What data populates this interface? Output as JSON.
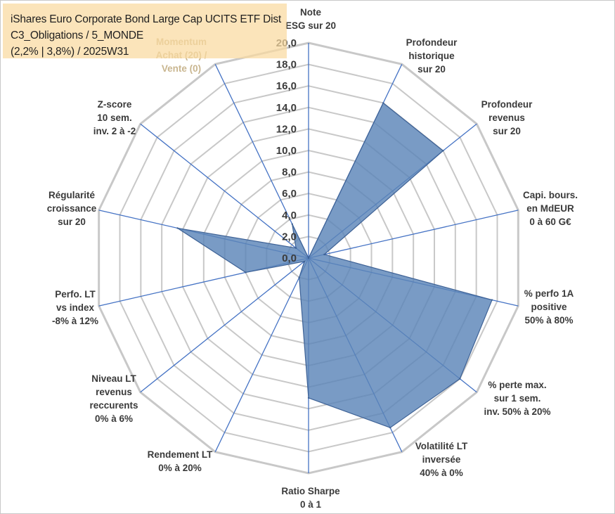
{
  "title": {
    "line1": "iShares Euro Corporate Bond Large Cap UCITS ETF Dist",
    "line2": "C3_Obligations / 5_MONDE",
    "line3": "(2,2% | 3,8%) / 2025W31"
  },
  "colors": {
    "fill": "#5b85b8",
    "edge": "#3e6296",
    "spokes": "#4472c4",
    "grid": "#c8c8c8"
  },
  "chart_data": {
    "type": "radar",
    "ylim": [
      0,
      20
    ],
    "tick_step": 2,
    "tick_labels": [
      "0,0",
      "2,0",
      "4,0",
      "6,0",
      "8,0",
      "10,0",
      "12,0",
      "14,0",
      "16,0",
      "18,0",
      "20,0"
    ],
    "grid": true,
    "axes": [
      {
        "label": [
          "Note",
          "ESG sur 20"
        ],
        "value": 0
      },
      {
        "label": [
          "Profondeur",
          "historique",
          "sur 20"
        ],
        "value": 16
      },
      {
        "label": [
          "Profondeur",
          "revenus",
          "sur 20"
        ],
        "value": 16
      },
      {
        "label": [
          "Capi. bours.",
          "en MdEUR",
          "0 à 60 G€"
        ],
        "value": 1.5
      },
      {
        "label": [
          "% perfo 1A",
          "positive",
          "50% à 80%"
        ],
        "value": 17.5
      },
      {
        "label": [
          "% perte max.",
          "sur 1 sem.",
          "inv. 50% à 20%"
        ],
        "value": 18
      },
      {
        "label": [
          "Volatilité LT",
          "inversée",
          "40% à 0%"
        ],
        "value": 17.5
      },
      {
        "label": [
          "Ratio Sharpe",
          "0 à 1"
        ],
        "value": 13
      },
      {
        "label": [
          "Rendement LT",
          "0% à 20%"
        ],
        "value": 2
      },
      {
        "label": [
          "Niveau LT",
          "revenus",
          "reccurents",
          "0% à 6%"
        ],
        "value": 0.5
      },
      {
        "label": [
          "Perfo. LT",
          "vs index",
          "-8% à 12%"
        ],
        "value": 6
      },
      {
        "label": [
          "Régularité",
          "croissance",
          "sur 20"
        ],
        "value": 12.5
      },
      {
        "label": [
          "Z-score",
          "10 sem.",
          "inv. 2 à -2"
        ],
        "value": 1.5
      },
      {
        "label": [
          "Momentum",
          "Achat (20) /",
          "Vente (0)"
        ],
        "value": 3.5
      }
    ]
  }
}
